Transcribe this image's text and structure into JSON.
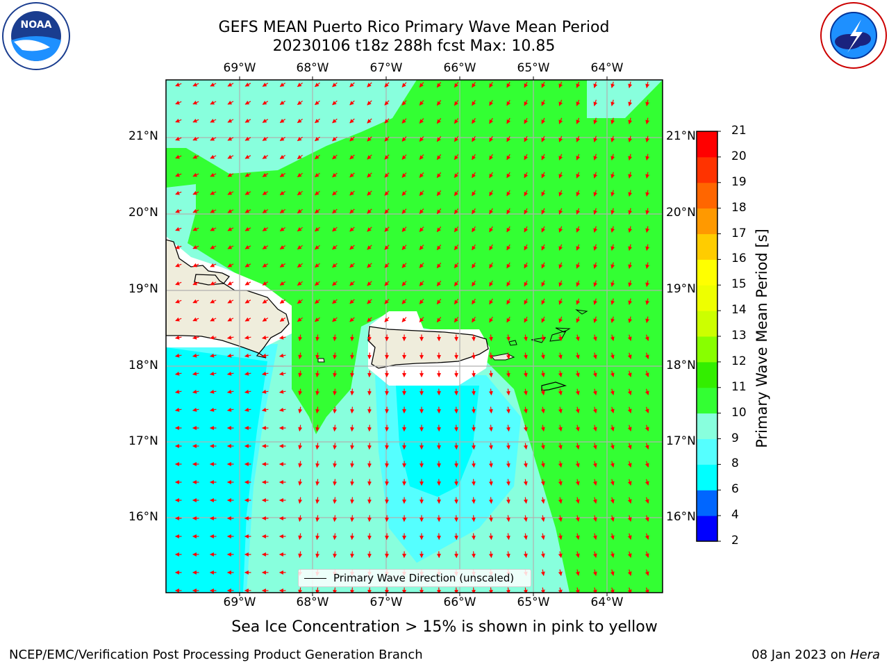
{
  "header": {
    "title_line1": "GEFS MEAN Puerto Rico Primary Wave Mean Period",
    "title_line2": "20230106 t18z 288h fcst   Max: 10.85"
  },
  "logos": {
    "left": {
      "text": "NOAA",
      "ring_text": "NATIONAL OCEANIC AND ATMOSPHERIC ADMINISTRATION · U.S. DEPARTMENT OF COMMERCE",
      "icon": "noaa-logo-icon"
    },
    "right": {
      "ring_text": "NATIONAL WEATHER SERVICE",
      "icon": "nws-logo-icon"
    }
  },
  "map": {
    "lon_labels": [
      "69°W",
      "68°W",
      "67°W",
      "66°W",
      "65°W",
      "64°W"
    ],
    "lat_labels": [
      "21°N",
      "20°N",
      "19°N",
      "18°N",
      "17°N",
      "16°N"
    ],
    "colors": {
      "ocean_green": "#33ff33",
      "ocean_aqua": "#88ffdd",
      "ocean_cyan2": "#55ffff",
      "ocean_cyan": "#00ffff",
      "land": "#efeddc",
      "arrow": "#ff0000"
    }
  },
  "legend": {
    "label": "Primary Wave Direction (unscaled)"
  },
  "colorbar": {
    "label": "Primary Wave Mean Period [s]",
    "ticks": [
      "21",
      "20",
      "19",
      "18",
      "17",
      "16",
      "15",
      "14",
      "13",
      "12",
      "11",
      "10",
      "9",
      "8",
      "6",
      "4",
      "2"
    ],
    "colors_bottom_to_top": [
      "#0000ff",
      "#0066ff",
      "#00ffff",
      "#55ffff",
      "#88ffdd",
      "#33ff33",
      "#33ee00",
      "#88ff00",
      "#ccff00",
      "#eeff00",
      "#ffff00",
      "#ffcc00",
      "#ff9900",
      "#ff6600",
      "#ff3300",
      "#ff0000"
    ]
  },
  "caption": "Sea Ice Concentration > 15% is shown in pink to yellow",
  "footer": {
    "left": "NCEP/EMC/Verification Post Processing Product Generation Branch",
    "right_prefix": "08 Jan 2023 on ",
    "right_italic": "Hera"
  }
}
